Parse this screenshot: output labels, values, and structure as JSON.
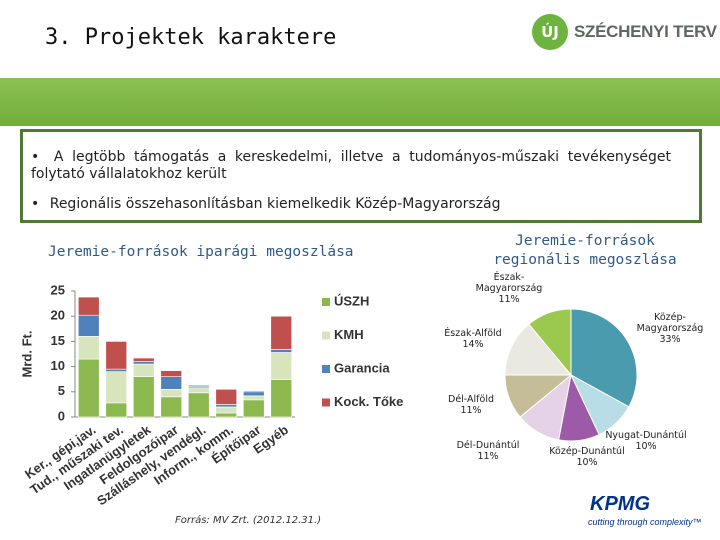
{
  "header": {
    "title": "3. Projektek karaktere"
  },
  "logo": {
    "mark": "ÚJ",
    "name": "SZÉCHENYI TERV"
  },
  "bullets": [
    "A legtöbb támogatás a kereskedelmi, illetve a tudományos-műszaki tevékenységet folytató vállalatokhoz került",
    "Regionális összehasonlításban kiemelkedik Közép-Magyarország"
  ],
  "chart_data": [
    {
      "type": "bar",
      "stacked": true,
      "title": "Jeremie-források iparági megoszlása",
      "y_label": "Mrd. Ft.",
      "categories": [
        "Ker., gépi,jav.",
        "Tud., műszaki tev.",
        "Ingatlanügyletek",
        "Feldolgozóipar",
        "Szálláshely, vendégl.",
        "Inform., komm.",
        "Építőipar",
        "Egyéb"
      ],
      "series": [
        {
          "name": "ÚSZH",
          "color": "#8cb94f",
          "values": [
            11.5,
            2.8,
            8,
            4,
            4.8,
            0.8,
            3.4,
            7.4
          ]
        },
        {
          "name": "KMH",
          "color": "#d7e5bd",
          "values": [
            4.5,
            6.2,
            2.5,
            1.5,
            1,
            1.2,
            0.8,
            5.4
          ]
        },
        {
          "name": "Garancia",
          "color": "#4f81bd",
          "values": [
            4.2,
            0.5,
            0.5,
            2.5,
            0.3,
            0.5,
            0.8,
            0.6
          ]
        },
        {
          "name": "Kock. Tőke",
          "color": "#c0504d",
          "values": [
            3.6,
            5.5,
            0.7,
            1.2,
            0.2,
            3,
            0.2,
            6.6
          ]
        }
      ],
      "ylim": [
        0,
        25
      ],
      "yticks": [
        0,
        5,
        10,
        15,
        20,
        25
      ],
      "grid": false,
      "legend": "right"
    },
    {
      "type": "pie",
      "title": "Jeremie-források regionális megoszlása",
      "categories": [
        "Közép-Magyarország",
        "Nyugat-Dunántúl",
        "Közép-Dunántúl",
        "Dél-Dunántúl",
        "Dél-Alföld",
        "Észak-Alföld",
        "Észak-Magyarország"
      ],
      "values": [
        33,
        10,
        10,
        11,
        11,
        14,
        11
      ],
      "value_labels": [
        "33%",
        "10%",
        "10%",
        "11%",
        "11%",
        "14%",
        "11%"
      ],
      "colors": [
        "#4a9bae",
        "#b9dde6",
        "#9c5aa8",
        "#e6d2e8",
        "#c4bd97",
        "#e9e9e1",
        "#9bc94f"
      ]
    }
  ],
  "source": "Forrás: MV Zrt. (2012.12.31.)",
  "footer": {
    "brand": "KPMG",
    "tagline": "cutting through complexity™"
  }
}
